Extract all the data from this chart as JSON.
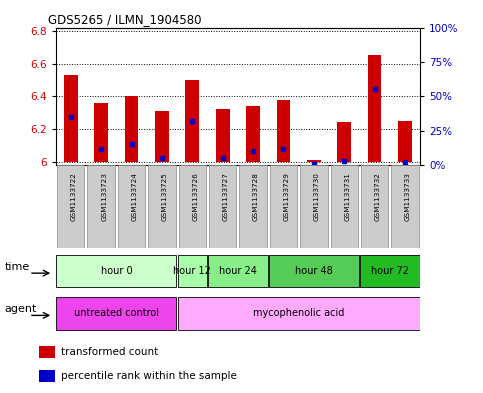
{
  "title": "GDS5265 / ILMN_1904580",
  "samples": [
    "GSM1133722",
    "GSM1133723",
    "GSM1133724",
    "GSM1133725",
    "GSM1133726",
    "GSM1133727",
    "GSM1133728",
    "GSM1133729",
    "GSM1133730",
    "GSM1133731",
    "GSM1133732",
    "GSM1133733"
  ],
  "transformed_counts": [
    6.53,
    6.36,
    6.4,
    6.31,
    6.5,
    6.32,
    6.34,
    6.38,
    6.01,
    6.24,
    6.65,
    6.25
  ],
  "percentile_ranks": [
    35,
    12,
    15,
    5,
    32,
    5,
    10,
    12,
    1,
    3,
    55,
    2
  ],
  "ylim_left": [
    5.98,
    6.82
  ],
  "ylim_right": [
    0,
    100
  ],
  "yticks_left": [
    6.0,
    6.2,
    6.4,
    6.6,
    6.8
  ],
  "yticks_right": [
    0,
    25,
    50,
    75,
    100
  ],
  "ytick_labels_left": [
    "6",
    "6.2",
    "6.4",
    "6.6",
    "6.8"
  ],
  "ytick_labels_right": [
    "0%",
    "25%",
    "50%",
    "75%",
    "100%"
  ],
  "bar_color": "#cc0000",
  "percentile_color": "#0000cc",
  "bar_bottom": 6.0,
  "bar_width": 0.45,
  "time_groups": [
    {
      "label": "hour 0",
      "samples": [
        0,
        1,
        2,
        3
      ],
      "color": "#ccffcc"
    },
    {
      "label": "hour 12",
      "samples": [
        4
      ],
      "color": "#aaffaa"
    },
    {
      "label": "hour 24",
      "samples": [
        5,
        6
      ],
      "color": "#88ee88"
    },
    {
      "label": "hour 48",
      "samples": [
        7,
        8,
        9
      ],
      "color": "#55cc55"
    },
    {
      "label": "hour 72",
      "samples": [
        10,
        11
      ],
      "color": "#22bb22"
    }
  ],
  "agent_groups": [
    {
      "label": "untreated control",
      "samples": [
        0,
        1,
        2,
        3
      ],
      "color": "#ee44ee"
    },
    {
      "label": "mycophenolic acid",
      "samples": [
        4,
        5,
        6,
        7,
        8,
        9,
        10,
        11
      ],
      "color": "#ffaaff"
    }
  ],
  "legend_items": [
    {
      "color": "#cc0000",
      "label": "transformed count"
    },
    {
      "color": "#0000cc",
      "label": "percentile rank within the sample"
    }
  ],
  "bg_color": "#ffffff",
  "tick_label_color_left": "#cc0000",
  "tick_label_color_right": "#0000bb",
  "sample_bg_color": "#cccccc"
}
